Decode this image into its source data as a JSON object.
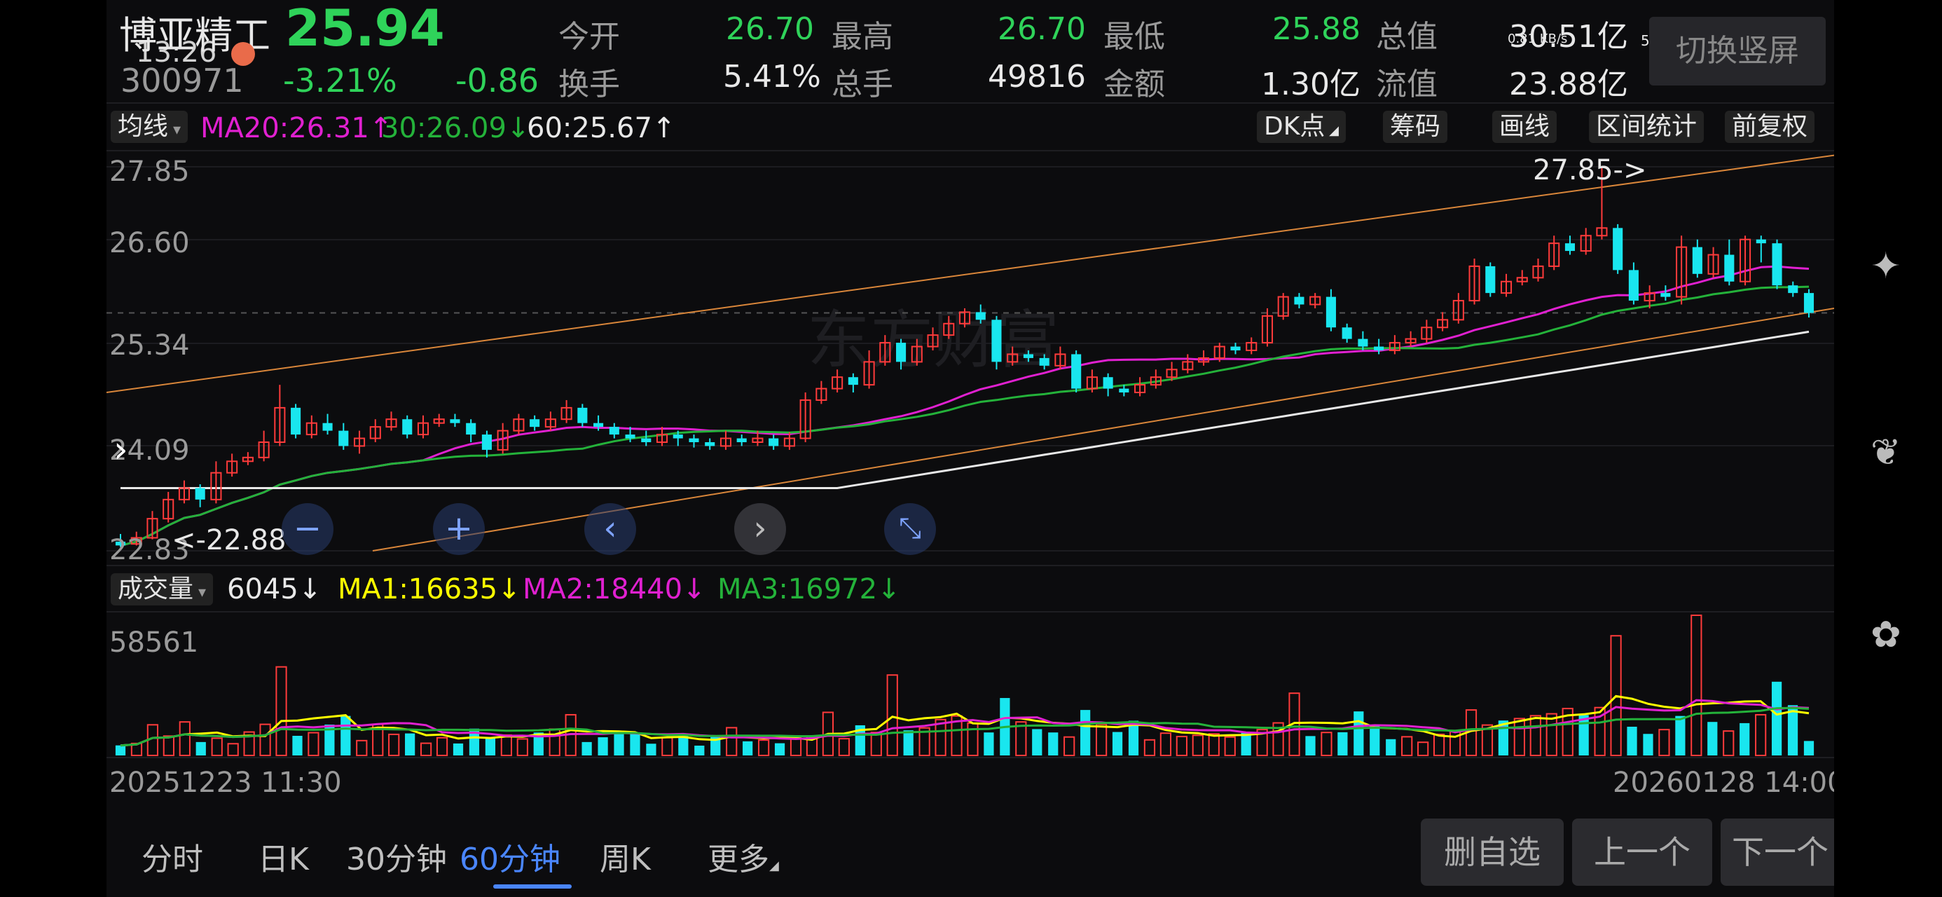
{
  "header": {
    "name": "博亚精工",
    "price": "25.94",
    "time": "13:26",
    "code": "300971",
    "change_pct": "-3.21%",
    "change_amt": "-0.86",
    "stats": [
      {
        "label": "今开",
        "value": "26.70"
      },
      {
        "label": "最高",
        "value": "26.70"
      },
      {
        "label": "最低",
        "value": "25.88"
      },
      {
        "label": "总值",
        "value": "30.51亿"
      },
      {
        "label": "换手",
        "value": "5.41%"
      },
      {
        "label": "总手",
        "value": "49816"
      },
      {
        "label": "金额",
        "value": "1.30亿"
      },
      {
        "label": "流值",
        "value": "23.88亿"
      }
    ],
    "switch_label": "切换竖屏",
    "status_speed": "0.81 KB/s",
    "status_net": "5G"
  },
  "ma_bar": {
    "selector": "均线",
    "ma20": "MA20:26.31",
    "ma30": "30:26.09",
    "ma60": "60:25.67",
    "buttons": [
      "DK点",
      "筹码",
      "画线",
      "区间统计",
      "前复权"
    ]
  },
  "price_chart": {
    "y_labels": [
      "27.85",
      "26.60",
      "25.34",
      "24.09",
      "22.83"
    ],
    "high_marker": "27.85->",
    "low_marker": "<-22.88",
    "colors": {
      "up": "#ff3b3b",
      "down": "#19e6ef",
      "ma20": "#e020d0",
      "ma30": "#24b23a",
      "ma60": "#e8e8e8",
      "channel": "#d9863a"
    },
    "watermark": "东方财富"
  },
  "chart_data": {
    "type": "candlestick",
    "ylim": [
      22.83,
      27.85
    ],
    "x_start_label": "20251223 11:30",
    "x_end_label": "20260128 14:00",
    "candles": [
      [
        22.95,
        22.9,
        23.05,
        22.88
      ],
      [
        22.92,
        23.0,
        23.08,
        22.9
      ],
      [
        23.0,
        23.25,
        23.35,
        22.98
      ],
      [
        23.25,
        23.5,
        23.6,
        23.2
      ],
      [
        23.5,
        23.65,
        23.75,
        23.45
      ],
      [
        23.65,
        23.5,
        23.7,
        23.4
      ],
      [
        23.5,
        23.85,
        24.0,
        23.45
      ],
      [
        23.85,
        24.0,
        24.1,
        23.8
      ],
      [
        24.0,
        24.05,
        24.12,
        23.95
      ],
      [
        24.05,
        24.25,
        24.4,
        24.0
      ],
      [
        24.25,
        24.7,
        25.0,
        24.2
      ],
      [
        24.7,
        24.35,
        24.75,
        24.3
      ],
      [
        24.35,
        24.5,
        24.6,
        24.3
      ],
      [
        24.5,
        24.4,
        24.62,
        24.35
      ],
      [
        24.4,
        24.2,
        24.5,
        24.15
      ],
      [
        24.2,
        24.3,
        24.4,
        24.1
      ],
      [
        24.3,
        24.45,
        24.55,
        24.25
      ],
      [
        24.45,
        24.55,
        24.65,
        24.4
      ],
      [
        24.55,
        24.35,
        24.6,
        24.3
      ],
      [
        24.35,
        24.5,
        24.6,
        24.3
      ],
      [
        24.5,
        24.55,
        24.62,
        24.45
      ],
      [
        24.55,
        24.5,
        24.62,
        24.45
      ],
      [
        24.5,
        24.35,
        24.55,
        24.25
      ],
      [
        24.35,
        24.15,
        24.4,
        24.05
      ],
      [
        24.15,
        24.4,
        24.5,
        24.1
      ],
      [
        24.4,
        24.55,
        24.62,
        24.35
      ],
      [
        24.55,
        24.45,
        24.6,
        24.4
      ],
      [
        24.45,
        24.55,
        24.65,
        24.4
      ],
      [
        24.55,
        24.7,
        24.8,
        24.5
      ],
      [
        24.7,
        24.5,
        24.75,
        24.45
      ],
      [
        24.5,
        24.45,
        24.6,
        24.4
      ],
      [
        24.45,
        24.35,
        24.5,
        24.3
      ],
      [
        24.35,
        24.3,
        24.45,
        24.25
      ],
      [
        24.3,
        24.25,
        24.4,
        24.2
      ],
      [
        24.25,
        24.35,
        24.45,
        24.2
      ],
      [
        24.35,
        24.3,
        24.4,
        24.2
      ],
      [
        24.3,
        24.25,
        24.35,
        24.18
      ],
      [
        24.25,
        24.2,
        24.3,
        24.15
      ],
      [
        24.2,
        24.3,
        24.4,
        24.15
      ],
      [
        24.3,
        24.25,
        24.35,
        24.2
      ],
      [
        24.25,
        24.3,
        24.4,
        24.2
      ],
      [
        24.3,
        24.2,
        24.35,
        24.15
      ],
      [
        24.2,
        24.3,
        24.38,
        24.15
      ],
      [
        24.3,
        24.8,
        24.9,
        24.25
      ],
      [
        24.8,
        24.95,
        25.05,
        24.75
      ],
      [
        24.95,
        25.1,
        25.2,
        24.9
      ],
      [
        25.1,
        25.0,
        25.15,
        24.9
      ],
      [
        25.0,
        25.3,
        25.45,
        24.95
      ],
      [
        25.3,
        25.55,
        25.65,
        25.25
      ],
      [
        25.55,
        25.3,
        25.6,
        25.2
      ],
      [
        25.3,
        25.5,
        25.6,
        25.25
      ],
      [
        25.5,
        25.65,
        25.75,
        25.45
      ],
      [
        25.65,
        25.8,
        25.9,
        25.6
      ],
      [
        25.8,
        25.95,
        26.0,
        25.75
      ],
      [
        25.95,
        25.85,
        26.05,
        25.8
      ],
      [
        25.85,
        25.3,
        25.9,
        25.2
      ],
      [
        25.3,
        25.4,
        25.5,
        25.25
      ],
      [
        25.4,
        25.35,
        25.45,
        25.3
      ],
      [
        25.35,
        25.25,
        25.4,
        25.2
      ],
      [
        25.25,
        25.4,
        25.5,
        25.2
      ],
      [
        25.4,
        24.95,
        25.45,
        24.9
      ],
      [
        24.95,
        25.1,
        25.2,
        24.9
      ],
      [
        25.1,
        24.95,
        25.15,
        24.85
      ],
      [
        24.95,
        24.9,
        25.0,
        24.85
      ],
      [
        24.9,
        25.0,
        25.1,
        24.85
      ],
      [
        25.0,
        25.1,
        25.2,
        24.95
      ],
      [
        25.1,
        25.2,
        25.3,
        25.05
      ],
      [
        25.2,
        25.3,
        25.4,
        25.15
      ],
      [
        25.3,
        25.35,
        25.45,
        25.25
      ],
      [
        25.35,
        25.5,
        25.55,
        25.3
      ],
      [
        25.5,
        25.45,
        25.55,
        25.4
      ],
      [
        25.45,
        25.55,
        25.62,
        25.4
      ],
      [
        25.55,
        25.9,
        26.0,
        25.5
      ],
      [
        25.9,
        26.15,
        26.2,
        25.85
      ],
      [
        26.15,
        26.05,
        26.2,
        26.0
      ],
      [
        26.05,
        26.15,
        26.2,
        26.0
      ],
      [
        26.15,
        25.75,
        26.25,
        25.7
      ],
      [
        25.75,
        25.6,
        25.8,
        25.55
      ],
      [
        25.6,
        25.5,
        25.7,
        25.45
      ],
      [
        25.5,
        25.45,
        25.6,
        25.4
      ],
      [
        25.45,
        25.55,
        25.65,
        25.4
      ],
      [
        25.55,
        25.6,
        25.7,
        25.5
      ],
      [
        25.6,
        25.75,
        25.85,
        25.55
      ],
      [
        25.75,
        25.85,
        25.95,
        25.7
      ],
      [
        25.85,
        26.1,
        26.2,
        25.8
      ],
      [
        26.1,
        26.55,
        26.65,
        26.05
      ],
      [
        26.55,
        26.2,
        26.6,
        26.15
      ],
      [
        26.2,
        26.35,
        26.45,
        26.15
      ],
      [
        26.35,
        26.4,
        26.5,
        26.3
      ],
      [
        26.4,
        26.55,
        26.65,
        26.35
      ],
      [
        26.55,
        26.85,
        26.95,
        26.5
      ],
      [
        26.85,
        26.75,
        26.95,
        26.7
      ],
      [
        26.75,
        26.95,
        27.05,
        26.7
      ],
      [
        26.95,
        27.05,
        27.85,
        26.9
      ],
      [
        27.05,
        26.5,
        27.1,
        26.45
      ],
      [
        26.5,
        26.1,
        26.6,
        26.05
      ],
      [
        26.1,
        26.2,
        26.3,
        26.0
      ],
      [
        26.2,
        26.15,
        26.3,
        26.1
      ],
      [
        26.15,
        26.8,
        26.95,
        26.05
      ],
      [
        26.8,
        26.45,
        26.9,
        26.4
      ],
      [
        26.45,
        26.7,
        26.8,
        26.4
      ],
      [
        26.7,
        26.35,
        26.9,
        26.3
      ],
      [
        26.35,
        26.9,
        26.95,
        26.3
      ],
      [
        26.9,
        26.85,
        26.95,
        26.6
      ],
      [
        26.85,
        26.3,
        26.9,
        26.25
      ],
      [
        26.3,
        26.2,
        26.35,
        26.15
      ],
      [
        26.2,
        25.94,
        26.25,
        25.88
      ]
    ],
    "ma_lines": {
      "ma20": "26.31",
      "ma30": "26.09",
      "ma60": "25.67"
    }
  },
  "nav_buttons": [
    "minus",
    "plus",
    "chevron-left",
    "chevron-right",
    "collapse"
  ],
  "volume_bar": {
    "selector": "成交量",
    "vol": "6045",
    "ma1": "MA1:16635",
    "ma2": "MA2:18440",
    "ma3": "MA3:16972",
    "y_label": "58561"
  },
  "volume_data": {
    "ylim": [
      0,
      58561
    ],
    "values": [
      4200,
      5000,
      12800,
      8100,
      14000,
      5600,
      7200,
      4900,
      9800,
      13000,
      37000,
      8200,
      9500,
      12900,
      16500,
      6200,
      13000,
      8800,
      9200,
      5100,
      7400,
      5000,
      11200,
      7700,
      8500,
      6900,
      9600,
      11000,
      17000,
      5600,
      7600,
      8900,
      9300,
      4900,
      7400,
      8300,
      4100,
      7800,
      11600,
      5900,
      6400,
      5100,
      7400,
      8000,
      18000,
      7000,
      12600,
      9600,
      33600,
      10500,
      11500,
      15000,
      16500,
      13500,
      9600,
      24000,
      14000,
      11000,
      9600,
      7700,
      19000,
      13000,
      9800,
      14500,
      6500,
      9300,
      7900,
      8400,
      9000,
      7700,
      9800,
      10800,
      13600,
      26000,
      8100,
      9600,
      9700,
      18400,
      12500,
      6800,
      7800,
      5500,
      8800,
      10100,
      19000,
      12700,
      14600,
      15400,
      16600,
      17400,
      19600,
      16900,
      20000,
      50000,
      12000,
      9000,
      10800,
      16500,
      58561,
      14000,
      10200,
      13500,
      17000,
      30800,
      21000,
      6045
    ],
    "colors": {
      "ma1": "#ffff00",
      "ma2": "#e020d0",
      "ma3": "#24b23a"
    }
  },
  "date_labels": {
    "start": "20251223 11:30",
    "end": "20260128 14:00"
  },
  "bottom_tabs": [
    {
      "label": "分时"
    },
    {
      "label": "日K"
    },
    {
      "label": "30分钟"
    },
    {
      "label": "60分钟",
      "active": true
    },
    {
      "label": "周K"
    },
    {
      "label": "更多"
    }
  ],
  "bottom_buttons": [
    "删自选",
    "上一个",
    "下一个"
  ],
  "side_icons": [
    "sparkle-icon",
    "leaf-icon",
    "clover-icon"
  ]
}
